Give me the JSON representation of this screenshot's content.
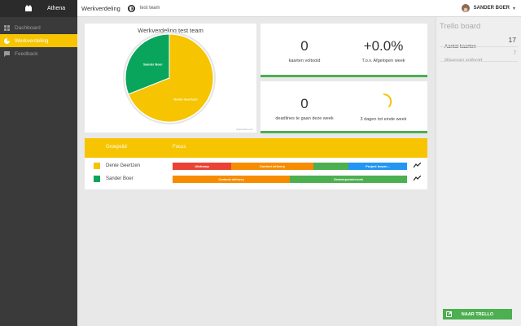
{
  "app": {
    "name": "Athena"
  },
  "sidebar": {
    "items": [
      {
        "label": "Dashboard",
        "icon": "dashboard-icon"
      },
      {
        "label": "Werkverdeling",
        "icon": "pie-chart-icon"
      },
      {
        "label": "Feedback",
        "icon": "feedback-icon"
      }
    ]
  },
  "topbar": {
    "title": "Werkverdeling",
    "team": "test team",
    "team_icon": "shield-icon"
  },
  "user": {
    "name": "SANDER BOER",
    "chevron": "▾"
  },
  "pie": {
    "title": "Werkverdeling test team",
    "credit": "Highcharts.com",
    "slices": [
      {
        "label": "Sander Boer",
        "value": 31,
        "color": "#0aa55c"
      },
      {
        "label": "Denie Geertzen",
        "value": 69,
        "color": "#f6c400"
      }
    ]
  },
  "stats": {
    "completed": {
      "value": "0",
      "label": "kaarten voltooid"
    },
    "change": {
      "value": "+0.0%",
      "label": "T.o.v. Afgelopen week"
    },
    "deadlines": {
      "value": "0",
      "label": "deadlines te gaan deze week"
    },
    "days_left": {
      "label": "3 dagen tot einde week"
    }
  },
  "group": {
    "header": {
      "member": "Groepslid",
      "focus": "Focus"
    },
    "rows": [
      {
        "name": "Denie Geertzen",
        "color": "#f6c400",
        "segments": [
          {
            "label": "Uitdramp",
            "share": 0.25,
            "color": "#ea4335"
          },
          {
            "label": "Content delivery",
            "share": 0.35,
            "color": "#f78c00"
          },
          {
            "label": "",
            "share": 0.15,
            "color": "#4caf50"
          },
          {
            "label": "Project beyon...",
            "share": 0.25,
            "color": "#2196f3"
          }
        ]
      },
      {
        "name": "Sander Boer",
        "color": "#0aa55c",
        "segments": [
          {
            "label": "Content delivery",
            "share": 0.5,
            "color": "#f78c00"
          },
          {
            "label": "Ontwerponderzoek",
            "share": 0.5,
            "color": "#4caf50"
          }
        ]
      }
    ]
  },
  "trello": {
    "title": "Trello board",
    "total_label": "Aantal kaarten",
    "total_value": "17",
    "done_label": "Waarvan voltooid",
    "done_value": "7",
    "button": "NAAR TRELLO"
  },
  "colors": {
    "accent": "#f6c400",
    "green": "#4caf50"
  }
}
